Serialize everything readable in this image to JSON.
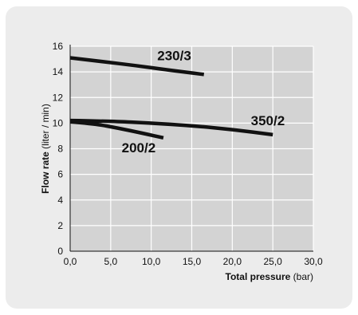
{
  "chart_data": {
    "type": "line",
    "ylabel_bold": "Flow rate",
    "ylabel_unit": "(liter / min)",
    "xlabel_bold": "Total pressure",
    "xlabel_unit": "(bar)",
    "xlim": [
      0,
      30
    ],
    "ylim": [
      0,
      16
    ],
    "x_ticks": [
      0,
      5,
      10,
      15,
      20,
      25,
      30
    ],
    "x_tick_labels": [
      "0,0",
      "5,0",
      "10,0",
      "15,0",
      "20,0",
      "25,0",
      "30,0"
    ],
    "y_ticks": [
      0,
      2,
      4,
      6,
      8,
      10,
      12,
      14,
      16
    ],
    "y_tick_labels": [
      "0",
      "2",
      "4",
      "6",
      "8",
      "10",
      "12",
      "14",
      "16"
    ],
    "grid": true,
    "colors": {
      "line": "#111111",
      "plot_bg": "#d3d3d3",
      "grid": "#ffffff",
      "card_bg": "#ececec",
      "text": "#111111"
    },
    "series": [
      {
        "name": "230/3",
        "x": [
          0,
          4,
          8,
          12,
          16.5
        ],
        "y": [
          15.1,
          14.8,
          14.5,
          14.15,
          13.8
        ]
      },
      {
        "name": "350/2",
        "x": [
          0,
          5,
          10,
          15,
          20,
          25
        ],
        "y": [
          10.2,
          10.15,
          10.0,
          9.8,
          9.5,
          9.1
        ]
      },
      {
        "name": "200/2",
        "x": [
          0,
          3,
          6,
          9,
          11.5
        ],
        "y": [
          10.1,
          9.95,
          9.6,
          9.2,
          8.85
        ]
      }
    ]
  }
}
